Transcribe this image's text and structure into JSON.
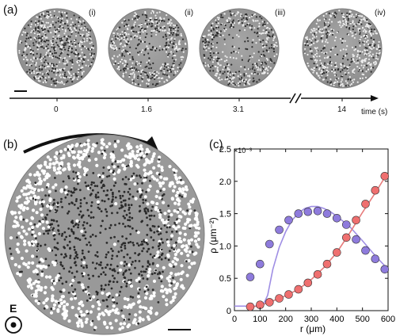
{
  "panel_a": {
    "label": "(a)",
    "snapshots": [
      {
        "roman": "(i)",
        "time": "0"
      },
      {
        "roman": "(ii)",
        "time": "1.6"
      },
      {
        "roman": "(iii)",
        "time": "3.1"
      },
      {
        "roman": "(iv)",
        "time": "14"
      }
    ],
    "time_axis_label": "time (s)"
  },
  "panel_b": {
    "label": "(b)",
    "field_label": "E"
  },
  "panel_c": {
    "label": "(c)",
    "chart_data": {
      "type": "scatter",
      "xlabel": "r (μm)",
      "ylabel": "ρ (μm⁻²)",
      "y_multiplier_label": "×10⁻³",
      "xlim": [
        0,
        600
      ],
      "ylim": [
        0,
        2.5
      ],
      "x_ticks": [
        "0",
        "100",
        "200",
        "300",
        "400",
        "500",
        "600"
      ],
      "y_ticks": [
        "0",
        "0.5",
        "1.0",
        "1.5",
        "2.0",
        "2.5"
      ],
      "grid": false,
      "colors": {
        "purple": "#8e7bdc",
        "red": "#ef6f6f",
        "purple_line": "#9f8ee4",
        "red_line": "#e77b7b"
      },
      "series": [
        {
          "marker": "circle",
          "color": "purple",
          "x": [
            62,
            100,
            137,
            175,
            212,
            250,
            287,
            325,
            362,
            400,
            437,
            475,
            512,
            550,
            587
          ],
          "y": [
            0.52,
            0.72,
            1.03,
            1.25,
            1.4,
            1.5,
            1.53,
            1.54,
            1.5,
            1.43,
            1.33,
            1.1,
            0.93,
            0.8,
            0.64
          ]
        },
        {
          "marker": "circle",
          "color": "red",
          "x": [
            62,
            100,
            137,
            175,
            212,
            250,
            287,
            325,
            362,
            400,
            437,
            475,
            512,
            550,
            587
          ],
          "y": [
            0.06,
            0.09,
            0.13,
            0.19,
            0.25,
            0.33,
            0.43,
            0.56,
            0.72,
            0.9,
            1.13,
            1.4,
            1.65,
            1.86,
            2.08
          ]
        },
        {
          "marker": "line",
          "color": "purple_line",
          "x": [
            0,
            110,
            130,
            150,
            175,
            200,
            225,
            250,
            275,
            300,
            325,
            350,
            375,
            400,
            450,
            500,
            550,
            590
          ],
          "y": [
            0.07,
            0.07,
            0.24,
            0.64,
            0.98,
            1.22,
            1.4,
            1.51,
            1.58,
            1.61,
            1.61,
            1.58,
            1.53,
            1.46,
            1.3,
            1.08,
            0.85,
            0.68
          ]
        },
        {
          "marker": "line",
          "color": "red_line",
          "x": [
            60,
            100,
            150,
            200,
            250,
            300,
            350,
            400,
            450,
            500,
            550,
            590
          ],
          "y": [
            0.05,
            0.08,
            0.15,
            0.23,
            0.33,
            0.48,
            0.67,
            0.9,
            1.2,
            1.52,
            1.82,
            2.08
          ]
        }
      ]
    }
  }
}
